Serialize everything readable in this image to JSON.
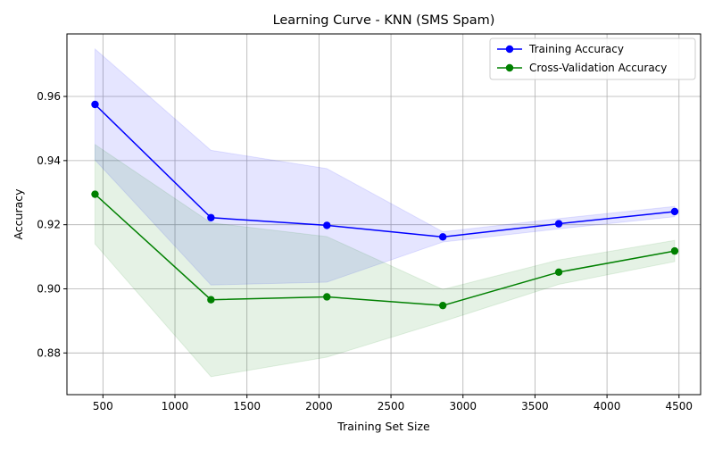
{
  "chart_data": {
    "type": "line",
    "title": "Learning Curve - KNN (SMS Spam)",
    "xlabel": "Training Set Size",
    "ylabel": "Accuracy",
    "xlim": [
      250,
      4650
    ],
    "ylim": [
      0.867,
      0.9795
    ],
    "xticks": [
      500,
      1000,
      1500,
      2000,
      2500,
      3000,
      3500,
      4000,
      4500
    ],
    "yticks": [
      0.88,
      0.9,
      0.92,
      0.94,
      0.96
    ],
    "ytick_labels": [
      "0.88",
      "0.90",
      "0.92",
      "0.94",
      "0.96"
    ],
    "grid": true,
    "legend_position": "top-right",
    "x": [
      445,
      1250,
      2055,
      2860,
      3665,
      4470
    ],
    "series": [
      {
        "name": "Training Accuracy",
        "color": "#0000ff",
        "band_color": "#0000ff",
        "values": [
          0.9575,
          0.9222,
          0.9198,
          0.9162,
          0.9203,
          0.9241
        ],
        "band_upper": [
          0.9748,
          0.9432,
          0.9375,
          0.9178,
          0.9219,
          0.9257
        ],
        "band_lower": [
          0.9402,
          0.9012,
          0.9021,
          0.9146,
          0.9187,
          0.9225
        ]
      },
      {
        "name": "Cross-Validation Accuracy",
        "color": "#008000",
        "band_color": "#008000",
        "values": [
          0.9295,
          0.8966,
          0.8975,
          0.8948,
          0.9052,
          0.9118
        ],
        "band_upper": [
          0.945,
          0.9206,
          0.9163,
          0.8998,
          0.909,
          0.9151
        ],
        "band_lower": [
          0.914,
          0.8726,
          0.8787,
          0.8898,
          0.9014,
          0.9085
        ]
      }
    ]
  }
}
